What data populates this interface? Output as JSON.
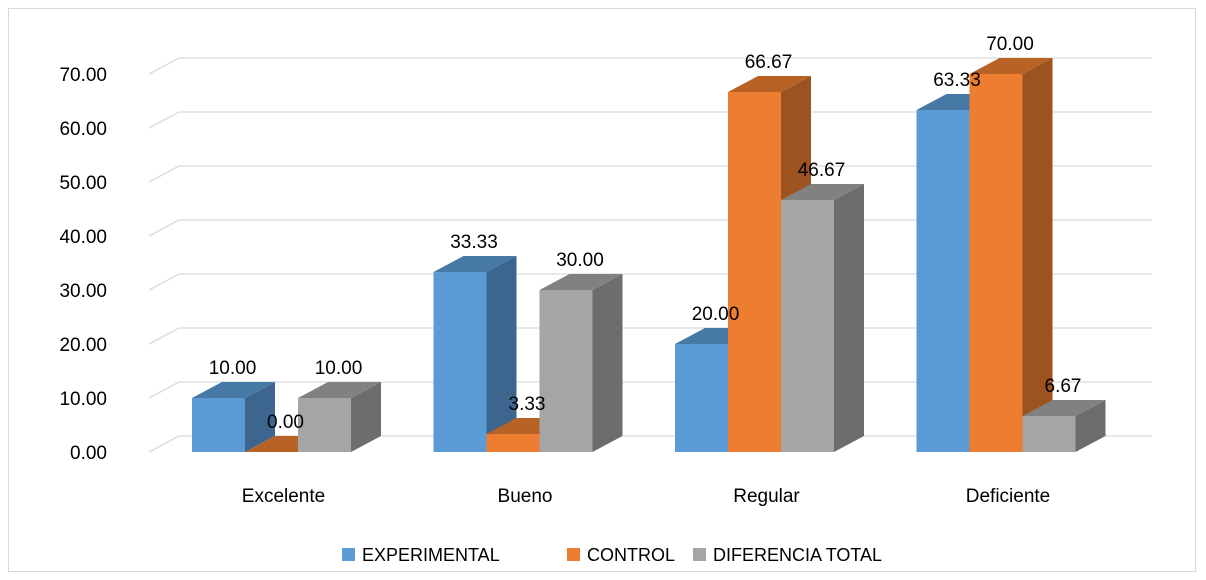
{
  "chart_data": {
    "type": "bar",
    "categories": [
      "Excelente",
      "Bueno",
      "Regular",
      "Deficiente"
    ],
    "series": [
      {
        "name": "EXPERIMENTAL",
        "values": [
          10.0,
          33.33,
          20.0,
          63.33
        ],
        "labels": [
          "10.00",
          "33.33",
          "20.00",
          "63.33"
        ],
        "color": "#5b9bd5"
      },
      {
        "name": "CONTROL",
        "values": [
          0.0,
          3.33,
          66.67,
          70.0
        ],
        "labels": [
          "0.00",
          "3.33",
          "66.67",
          "70.00"
        ],
        "color": "#ed7d31"
      },
      {
        "name": "DIFERENCIA TOTAL",
        "values": [
          10.0,
          30.0,
          46.67,
          6.67
        ],
        "labels": [
          "10.00",
          "30.00",
          "46.67",
          "6.67"
        ],
        "color": "#a5a5a5"
      }
    ],
    "y_ticks": [
      "0.00",
      "10.00",
      "20.00",
      "30.00",
      "40.00",
      "50.00",
      "60.00",
      "70.00"
    ],
    "ylim": [
      0,
      70
    ],
    "grid": true,
    "legend": "bottom",
    "style": "3d-column"
  }
}
